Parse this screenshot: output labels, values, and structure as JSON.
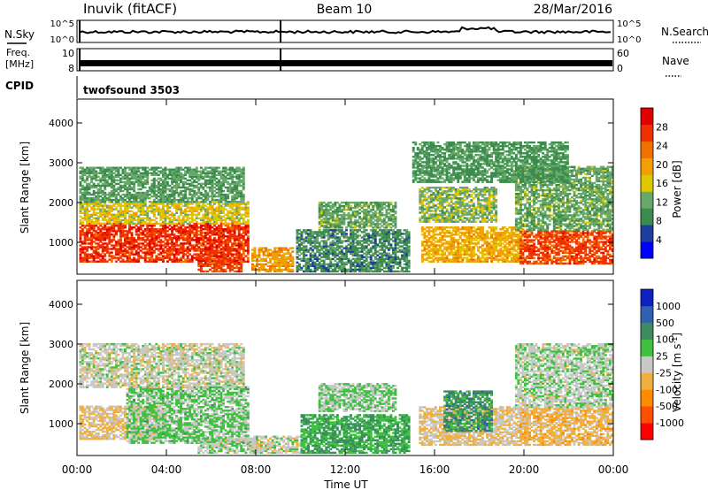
{
  "header": {
    "station": "Inuvik (fitACF)",
    "beam": "Beam 10",
    "date": "28/Mar/2016"
  },
  "status_panels": {
    "nsky": {
      "label": "N.Sky",
      "yticks": [
        "10^5",
        "10^0"
      ]
    },
    "nsearch": {
      "label": "N.Search",
      "yticks": [
        "10^5",
        "10^0"
      ]
    },
    "freq": {
      "label_line1": "Freq.",
      "label_line2": "[MHz]",
      "yticks": [
        "10",
        "8"
      ]
    },
    "nave": {
      "label": "Nave",
      "yticks": [
        "60",
        "0"
      ]
    },
    "cpid": {
      "label": "CPID",
      "value": "twofsound 3503"
    }
  },
  "colors": {
    "power": [
      "#0000ff",
      "#1f3fa0",
      "#3c8c50",
      "#6aa86a",
      "#e0c800",
      "#f0a000",
      "#f07000",
      "#f03000",
      "#e00000"
    ],
    "velocity": [
      "#ff0000",
      "#ff5000",
      "#ff8c00",
      "#f0b040",
      "#c8c8c8",
      "#40c040",
      "#3c8c60",
      "#3060b0",
      "#1020c0"
    ]
  },
  "chart_data": [
    {
      "type": "heatmap",
      "name": "power",
      "title": "",
      "xlabel": "Time UT",
      "ylabel": "Slant Range [km]",
      "xticks": [
        "00:00",
        "04:00",
        "08:00",
        "12:00",
        "16:00",
        "20:00",
        "00:00"
      ],
      "xlim": [
        0,
        24
      ],
      "ylim": [
        200,
        4600
      ],
      "yticks": [
        1000,
        2000,
        3000,
        4000
      ],
      "colorbar": {
        "label": "Power [dB]",
        "ticks": [
          "28",
          "24",
          "20",
          "16",
          "12",
          "8",
          "4"
        ],
        "range": [
          0,
          32
        ]
      },
      "regions": [
        {
          "t0": 0.1,
          "t1": 7.6,
          "r0": 500,
          "r1": 1450,
          "level": 27
        },
        {
          "t0": 0.1,
          "t1": 7.6,
          "r0": 1450,
          "r1": 2000,
          "level": 16
        },
        {
          "t0": 0.1,
          "t1": 7.4,
          "r0": 2000,
          "r1": 2900,
          "level": 11
        },
        {
          "t0": 5.4,
          "t1": 7.3,
          "r0": 250,
          "r1": 600,
          "level": 26
        },
        {
          "t0": 7.8,
          "t1": 9.6,
          "r0": 250,
          "r1": 850,
          "level": 20
        },
        {
          "t0": 9.8,
          "t1": 14.8,
          "r0": 250,
          "r1": 1300,
          "level": 9
        },
        {
          "t0": 10.8,
          "t1": 14.2,
          "r0": 1350,
          "r1": 2000,
          "level": 12
        },
        {
          "t0": 15.4,
          "t1": 20.0,
          "r0": 500,
          "r1": 1400,
          "level": 19
        },
        {
          "t0": 15.3,
          "t1": 18.8,
          "r0": 1500,
          "r1": 2400,
          "level": 13
        },
        {
          "t0": 19.8,
          "t1": 24.0,
          "r0": 450,
          "r1": 1300,
          "level": 26
        },
        {
          "t0": 19.6,
          "t1": 24.0,
          "r0": 1300,
          "r1": 2900,
          "level": 12
        },
        {
          "t0": 15.0,
          "t1": 22.0,
          "r0": 2500,
          "r1": 3500,
          "level": 10
        }
      ]
    },
    {
      "type": "heatmap",
      "name": "velocity",
      "title": "",
      "xlabel": "Time UT",
      "ylabel": "Slant Range [km]",
      "xticks": [
        "00:00",
        "04:00",
        "08:00",
        "12:00",
        "16:00",
        "20:00",
        "00:00"
      ],
      "xlim": [
        0,
        24
      ],
      "ylim": [
        200,
        4600
      ],
      "yticks": [
        1000,
        2000,
        3000,
        4000
      ],
      "colorbar": {
        "label": "Velocity [m s^-1]",
        "ticks": [
          "1000",
          "500",
          "100",
          "25",
          "-25",
          "-100",
          "-500",
          "-1000"
        ],
        "range": [
          -1200,
          1200
        ]
      },
      "regions": [
        {
          "t0": 0.1,
          "t1": 4.0,
          "r0": 600,
          "r1": 1450,
          "level": -150
        },
        {
          "t0": 2.2,
          "t1": 7.6,
          "r0": 500,
          "r1": 1900,
          "level": 200
        },
        {
          "t0": 0.1,
          "t1": 7.4,
          "r0": 1900,
          "r1": 3000,
          "level": 0
        },
        {
          "t0": 5.4,
          "t1": 8.0,
          "r0": 250,
          "r1": 650,
          "level": 60
        },
        {
          "t0": 7.8,
          "t1": 10.2,
          "r0": 250,
          "r1": 700,
          "level": 0
        },
        {
          "t0": 10.0,
          "t1": 14.8,
          "r0": 250,
          "r1": 1200,
          "level": 400
        },
        {
          "t0": 10.8,
          "t1": 14.2,
          "r0": 1300,
          "r1": 2000,
          "level": 150
        },
        {
          "t0": 15.3,
          "t1": 20.2,
          "r0": 450,
          "r1": 1400,
          "level": -150
        },
        {
          "t0": 16.4,
          "t1": 18.6,
          "r0": 800,
          "r1": 1800,
          "level": 500
        },
        {
          "t0": 19.8,
          "t1": 24.0,
          "r0": 450,
          "r1": 1400,
          "level": -250
        },
        {
          "t0": 19.6,
          "t1": 24.0,
          "r0": 1400,
          "r1": 3000,
          "level": 60
        }
      ]
    }
  ]
}
